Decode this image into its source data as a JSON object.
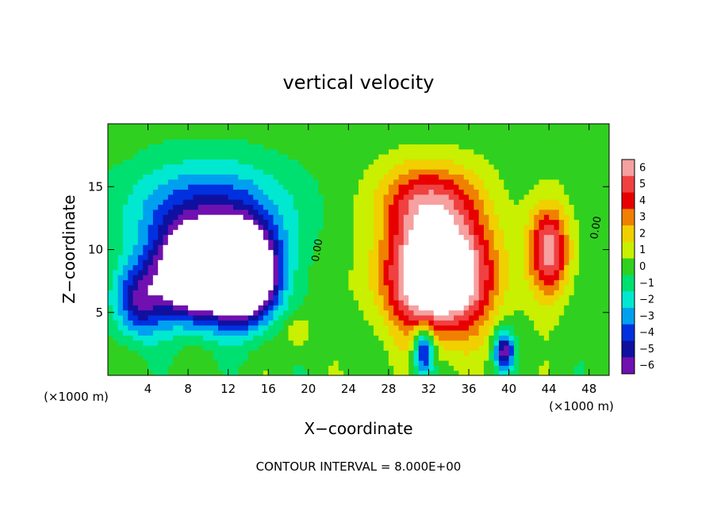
{
  "chart_data": {
    "type": "heatmap",
    "title": "vertical velocity",
    "xlabel": "X−coordinate",
    "ylabel": "Z−coordinate",
    "x_unit": "(×1000 m)",
    "x_unit_right": "(×1000 m)",
    "xlim": [
      0,
      50
    ],
    "ylim": [
      0,
      20
    ],
    "x_ticks": [
      4,
      8,
      12,
      16,
      20,
      24,
      28,
      32,
      36,
      40,
      44,
      48
    ],
    "x_tick_labels": [
      "4",
      "8",
      "12",
      "16",
      "20",
      "24",
      "28",
      "32",
      "36",
      "40",
      "44",
      "48"
    ],
    "y_ticks": [
      5,
      10,
      15
    ],
    "y_tick_labels": [
      "5",
      "10",
      "15"
    ],
    "colorbar": {
      "levels": [
        6,
        5,
        4,
        3,
        2,
        1,
        0,
        -1,
        -2,
        -3,
        -4,
        -5,
        -6
      ],
      "labels": [
        "6",
        "5",
        "4",
        "3",
        "2",
        "1",
        "0",
        "−1",
        "−2",
        "−3",
        "−4",
        "−5",
        "−6"
      ],
      "colors": [
        "#f6a0a0",
        "#f04040",
        "#e80000",
        "#f08000",
        "#f0d000",
        "#c8f000",
        "#30d020",
        "#00e070",
        "#00e8d0",
        "#00a0f0",
        "#0030e0",
        "#1010a0",
        "#7010b0"
      ]
    },
    "contour_label": "0.00",
    "contour_interval_text": "CONTOUR INTERVAL = 8.000E+00",
    "features": [
      {
        "sign": "down",
        "x": 9,
        "z": 8,
        "sx": 4,
        "sz": 3.5,
        "amp": -12
      },
      {
        "sign": "down",
        "x": 14,
        "z": 8,
        "sx": 3,
        "sz": 3.5,
        "amp": -12
      },
      {
        "sign": "down",
        "x": 10,
        "z": 13,
        "sx": 8,
        "sz": 4,
        "amp": -4.5
      },
      {
        "sign": "down",
        "x": 3,
        "z": 6,
        "sx": 2.5,
        "sz": 3,
        "amp": -5
      },
      {
        "sign": "up",
        "x": 33,
        "z": 8,
        "sx": 5,
        "sz": 4.5,
        "amp": 11
      },
      {
        "sign": "up",
        "x": 32,
        "z": 14,
        "sx": 5,
        "sz": 3,
        "amp": 4.5
      },
      {
        "sign": "up",
        "x": 44,
        "z": 10,
        "sx": 2,
        "sz": 3.5,
        "amp": 6
      },
      {
        "sign": "down",
        "x": 31.5,
        "z": 2,
        "sx": 1,
        "sz": 2,
        "amp": -6
      },
      {
        "sign": "down",
        "x": 39.5,
        "z": 2,
        "sx": 1,
        "sz": 1.5,
        "amp": -6
      },
      {
        "sign": "up",
        "x": 19,
        "z": 3.5,
        "sx": 1.2,
        "sz": 1.2,
        "amp": 2
      }
    ]
  }
}
